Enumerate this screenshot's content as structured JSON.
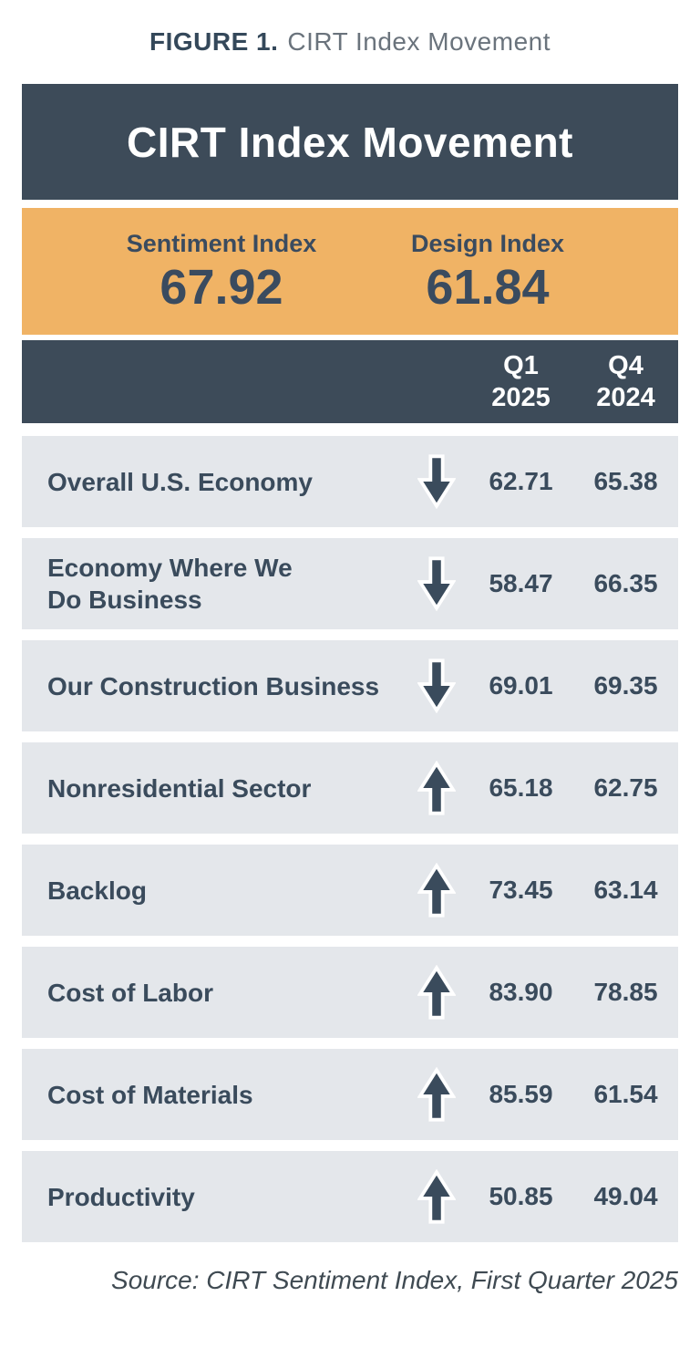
{
  "figure_caption": {
    "prefix": "FIGURE 1.",
    "title": "CIRT Index Movement"
  },
  "card": {
    "header_title": "CIRT Index Movement",
    "summary": {
      "items": [
        {
          "label": "Sentiment Index",
          "value": "67.92"
        },
        {
          "label": "Design Index",
          "value": "61.84"
        }
      ]
    },
    "columns": [
      {
        "line1": "Q1",
        "line2": "2025"
      },
      {
        "line1": "Q4",
        "line2": "2024"
      }
    ],
    "rows": [
      {
        "label": "Overall U.S. Economy",
        "label_lines": [
          "Overall U.S. Economy"
        ],
        "direction": "down",
        "q1_2025": "62.71",
        "q4_2024": "65.38"
      },
      {
        "label": "Economy Where We Do Business",
        "label_lines": [
          "Economy Where We",
          "Do Business"
        ],
        "direction": "down",
        "q1_2025": "58.47",
        "q4_2024": "66.35"
      },
      {
        "label": "Our Construction Business",
        "label_lines": [
          "Our Construction Business"
        ],
        "direction": "down",
        "q1_2025": "69.01",
        "q4_2024": "69.35"
      },
      {
        "label": "Nonresidential Sector",
        "label_lines": [
          "Nonresidential Sector"
        ],
        "direction": "up",
        "q1_2025": "65.18",
        "q4_2024": "62.75"
      },
      {
        "label": "Backlog",
        "label_lines": [
          "Backlog"
        ],
        "direction": "up",
        "q1_2025": "73.45",
        "q4_2024": "63.14"
      },
      {
        "label": "Cost of Labor",
        "label_lines": [
          "Cost of Labor"
        ],
        "direction": "up",
        "q1_2025": "83.90",
        "q4_2024": "78.85"
      },
      {
        "label": "Cost of Materials",
        "label_lines": [
          "Cost of Materials"
        ],
        "direction": "up",
        "q1_2025": "85.59",
        "q4_2024": "61.54"
      },
      {
        "label": "Productivity",
        "label_lines": [
          "Productivity"
        ],
        "direction": "up",
        "q1_2025": "50.85",
        "q4_2024": "49.04"
      }
    ]
  },
  "source": "Source: CIRT Sentiment Index, First Quarter 2025",
  "colors": {
    "slate": "#3d4b59",
    "text_slate": "#3a4b5c",
    "orange": "#f0b365",
    "row_bg": "#e4e7eb",
    "caption_gray": "#6a737c",
    "white": "#ffffff"
  },
  "chart_data": {
    "type": "table",
    "title": "CIRT Index Movement",
    "summary_indices": {
      "Sentiment Index": 67.92,
      "Design Index": 61.84
    },
    "columns": [
      "Q1 2025",
      "Q4 2024"
    ],
    "categories": [
      "Overall U.S. Economy",
      "Economy Where We Do Business",
      "Our Construction Business",
      "Nonresidential Sector",
      "Backlog",
      "Cost of Labor",
      "Cost of Materials",
      "Productivity"
    ],
    "series": [
      {
        "name": "Q1 2025",
        "values": [
          62.71,
          58.47,
          69.01,
          65.18,
          73.45,
          83.9,
          85.59,
          50.85
        ]
      },
      {
        "name": "Q4 2024",
        "values": [
          65.38,
          66.35,
          69.35,
          62.75,
          63.14,
          78.85,
          61.54,
          49.04
        ]
      }
    ],
    "movement": [
      "down",
      "down",
      "down",
      "up",
      "up",
      "up",
      "up",
      "up"
    ],
    "source": "Source: CIRT Sentiment Index, First Quarter 2025"
  }
}
